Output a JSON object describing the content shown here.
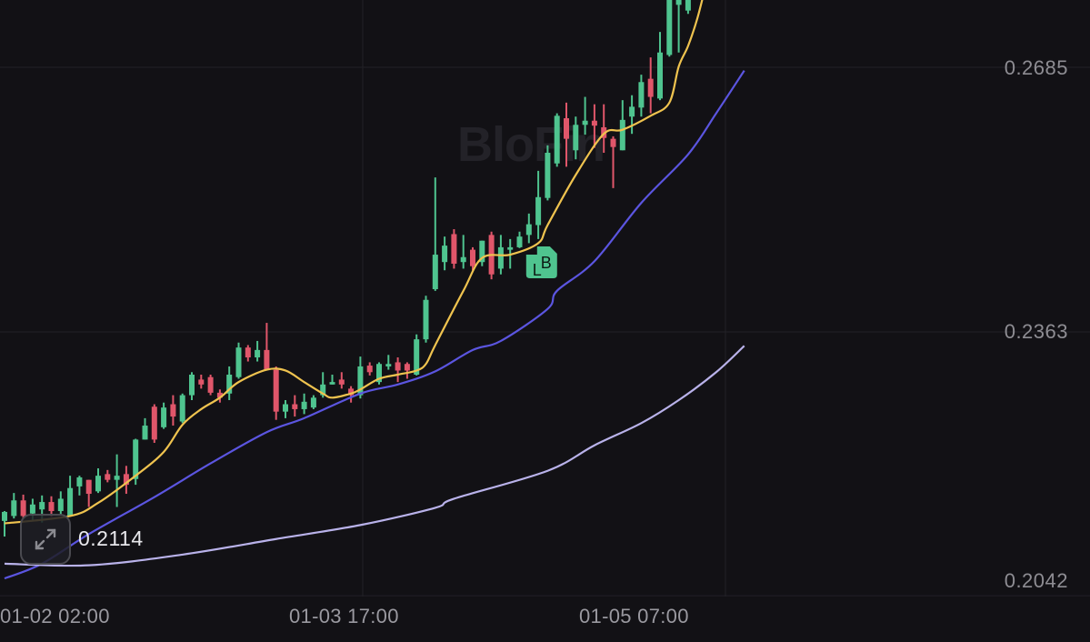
{
  "watermark": "BloFin",
  "colors": {
    "background": "#121115",
    "up": "#4fc48f",
    "down": "#e0566a",
    "ma_short": "#efc34f",
    "ma_mid": "#5b55e0",
    "ma_long": "#b9b2ea",
    "grid": "#222127"
  },
  "expand_button": {
    "icon": "expand-arrows-icon"
  },
  "last_price_label": "0.2114",
  "trade_marker": {
    "letters": [
      "L",
      "B"
    ],
    "candle_index": 56
  },
  "chart_data": {
    "type": "candlestick",
    "y_ticks": [
      "0.2685",
      "0.2363",
      "0.2042"
    ],
    "y_tick_values": [
      0.2685,
      0.2363,
      0.2042
    ],
    "x_ticks": [
      "01-02 02:00",
      "01-03 17:00",
      "01-05 07:00"
    ],
    "grid": true,
    "candles_ohlc": [
      [
        0.2133,
        0.2145,
        0.2114,
        0.2144
      ],
      [
        0.2139,
        0.2167,
        0.2136,
        0.2158
      ],
      [
        0.2158,
        0.2165,
        0.2136,
        0.2139
      ],
      [
        0.2142,
        0.216,
        0.2134,
        0.2153
      ],
      [
        0.2147,
        0.2164,
        0.2131,
        0.2156
      ],
      [
        0.2156,
        0.2163,
        0.2138,
        0.2145
      ],
      [
        0.2145,
        0.2169,
        0.214,
        0.216
      ],
      [
        0.2139,
        0.2188,
        0.2139,
        0.2173
      ],
      [
        0.2175,
        0.2188,
        0.2164,
        0.2186
      ],
      [
        0.2183,
        0.2183,
        0.215,
        0.2166
      ],
      [
        0.2169,
        0.2197,
        0.2167,
        0.2188
      ],
      [
        0.219,
        0.2195,
        0.218,
        0.2183
      ],
      [
        0.2183,
        0.2214,
        0.215,
        0.2188
      ],
      [
        0.219,
        0.22,
        0.2166,
        0.2177
      ],
      [
        0.2184,
        0.2233,
        0.2177,
        0.2232
      ],
      [
        0.2232,
        0.2258,
        0.2232,
        0.2249
      ],
      [
        0.2272,
        0.2275,
        0.2228,
        0.2232
      ],
      [
        0.2247,
        0.2277,
        0.2245,
        0.2271
      ],
      [
        0.2275,
        0.2286,
        0.2249,
        0.226
      ],
      [
        0.2254,
        0.2288,
        0.2252,
        0.2286
      ],
      [
        0.2286,
        0.2314,
        0.228,
        0.2311
      ],
      [
        0.2305,
        0.2311,
        0.2294,
        0.2299
      ],
      [
        0.2308,
        0.2311,
        0.2286,
        0.2289
      ],
      [
        0.2289,
        0.2293,
        0.2277,
        0.2283
      ],
      [
        0.2288,
        0.2321,
        0.228,
        0.2311
      ],
      [
        0.2308,
        0.235,
        0.2306,
        0.2344
      ],
      [
        0.2344,
        0.2347,
        0.2327,
        0.2332
      ],
      [
        0.2332,
        0.2352,
        0.2327,
        0.2341
      ],
      [
        0.2341,
        0.2374,
        0.2316,
        0.2317
      ],
      [
        0.2317,
        0.2321,
        0.2256,
        0.2266
      ],
      [
        0.2266,
        0.228,
        0.2258,
        0.2275
      ],
      [
        0.2275,
        0.2286,
        0.226,
        0.2269
      ],
      [
        0.2269,
        0.2288,
        0.2263,
        0.2278
      ],
      [
        0.2271,
        0.2286,
        0.2269,
        0.2283
      ],
      [
        0.2286,
        0.2314,
        0.2283,
        0.2299
      ],
      [
        0.2299,
        0.2311,
        0.2299,
        0.2302
      ],
      [
        0.2305,
        0.2314,
        0.2294,
        0.2299
      ],
      [
        0.2294,
        0.2297,
        0.2277,
        0.2286
      ],
      [
        0.2286,
        0.2333,
        0.2282,
        0.2321
      ],
      [
        0.2322,
        0.2326,
        0.231,
        0.2314
      ],
      [
        0.2302,
        0.2326,
        0.2299,
        0.2324
      ],
      [
        0.2321,
        0.2335,
        0.2317,
        0.2324
      ],
      [
        0.2326,
        0.2332,
        0.2302,
        0.2316
      ],
      [
        0.2324,
        0.2326,
        0.2306,
        0.2316
      ],
      [
        0.2311,
        0.236,
        0.231,
        0.2354
      ],
      [
        0.2354,
        0.2407,
        0.235,
        0.2402
      ],
      [
        0.2415,
        0.2551,
        0.2413,
        0.2457
      ],
      [
        0.2448,
        0.2479,
        0.2438,
        0.2468
      ],
      [
        0.2482,
        0.2488,
        0.244,
        0.2446
      ],
      [
        0.2448,
        0.2481,
        0.244,
        0.2454
      ],
      [
        0.2463,
        0.2466,
        0.2438,
        0.2443
      ],
      [
        0.2448,
        0.2474,
        0.2443,
        0.2474
      ],
      [
        0.2481,
        0.2485,
        0.2427,
        0.2433
      ],
      [
        0.244,
        0.2481,
        0.2433,
        0.2466
      ],
      [
        0.2463,
        0.2476,
        0.244,
        0.2466
      ],
      [
        0.2466,
        0.2485,
        0.2465,
        0.2479
      ],
      [
        0.2481,
        0.2507,
        0.2471,
        0.2494
      ],
      [
        0.2493,
        0.2559,
        0.2476,
        0.2527
      ],
      [
        0.2526,
        0.259,
        0.2523,
        0.2581
      ],
      [
        0.2568,
        0.2629,
        0.2564,
        0.2626
      ],
      [
        0.2623,
        0.2642,
        0.2564,
        0.2598
      ],
      [
        0.2584,
        0.2625,
        0.2573,
        0.2615
      ],
      [
        0.2615,
        0.2649,
        0.2603,
        0.262
      ],
      [
        0.262,
        0.264,
        0.2587,
        0.2614
      ],
      [
        0.2612,
        0.264,
        0.2581,
        0.2599
      ],
      [
        0.2598,
        0.2601,
        0.2538,
        0.2588
      ],
      [
        0.2584,
        0.2645,
        0.2584,
        0.2621
      ],
      [
        0.2625,
        0.2651,
        0.2604,
        0.2637
      ],
      [
        0.2636,
        0.2676,
        0.2625,
        0.2667
      ],
      [
        0.2671,
        0.2697,
        0.2629,
        0.2649
      ],
      [
        0.2647,
        0.2728,
        0.2645,
        0.2703
      ],
      [
        0.27,
        0.2783,
        0.2698,
        0.2778
      ],
      [
        0.2761,
        0.2789,
        0.2703,
        0.2767
      ],
      [
        0.2754,
        0.2789,
        0.275,
        0.2783
      ]
    ],
    "moving_averages": [
      {
        "color": "#efc34f",
        "points": [
          [
            0,
            0.213
          ],
          [
            7,
            0.2139
          ],
          [
            10,
            0.2155
          ],
          [
            14,
            0.2188
          ],
          [
            17,
            0.2217
          ],
          [
            19,
            0.225
          ],
          [
            21,
            0.2269
          ],
          [
            23,
            0.2283
          ],
          [
            25,
            0.2302
          ],
          [
            28,
            0.2317
          ],
          [
            30,
            0.2316
          ],
          [
            32,
            0.2302
          ],
          [
            34,
            0.2288
          ],
          [
            35,
            0.2283
          ],
          [
            37,
            0.2288
          ],
          [
            38,
            0.2293
          ],
          [
            40,
            0.2306
          ],
          [
            42,
            0.2311
          ],
          [
            44,
            0.2316
          ],
          [
            45,
            0.2324
          ],
          [
            46,
            0.2347
          ],
          [
            49,
            0.2413
          ],
          [
            51,
            0.2453
          ],
          [
            54,
            0.2457
          ],
          [
            57,
            0.2471
          ],
          [
            58,
            0.2493
          ],
          [
            61,
            0.2554
          ],
          [
            64,
            0.2604
          ],
          [
            66,
            0.2609
          ],
          [
            69,
            0.2626
          ],
          [
            71,
            0.2642
          ],
          [
            72,
            0.2686
          ],
          [
            73,
            0.2711
          ],
          [
            74,
            0.2745
          ],
          [
            75,
            0.279
          ]
        ]
      },
      {
        "color": "#5b55e0",
        "points": [
          [
            0,
            0.2063
          ],
          [
            4,
            0.2081
          ],
          [
            9,
            0.2117
          ],
          [
            16,
            0.2162
          ],
          [
            22,
            0.2203
          ],
          [
            28,
            0.2241
          ],
          [
            32,
            0.2258
          ],
          [
            38,
            0.2288
          ],
          [
            42,
            0.2299
          ],
          [
            46,
            0.2315
          ],
          [
            50,
            0.2341
          ],
          [
            53,
            0.2352
          ],
          [
            58,
            0.2391
          ],
          [
            59,
            0.2413
          ],
          [
            63,
            0.2449
          ],
          [
            68,
            0.252
          ],
          [
            73,
            0.2579
          ],
          [
            76,
            0.2629
          ],
          [
            79,
            0.2681
          ]
        ]
      },
      {
        "color": "#b9b2ea",
        "points": [
          [
            0,
            0.2081
          ],
          [
            9,
            0.2079
          ],
          [
            19,
            0.2092
          ],
          [
            29,
            0.2111
          ],
          [
            38,
            0.2128
          ],
          [
            46,
            0.2149
          ],
          [
            48,
            0.216
          ],
          [
            58,
            0.2194
          ],
          [
            63,
            0.2225
          ],
          [
            68,
            0.2252
          ],
          [
            72,
            0.228
          ],
          [
            76,
            0.2314
          ],
          [
            79,
            0.2346
          ]
        ]
      }
    ]
  }
}
